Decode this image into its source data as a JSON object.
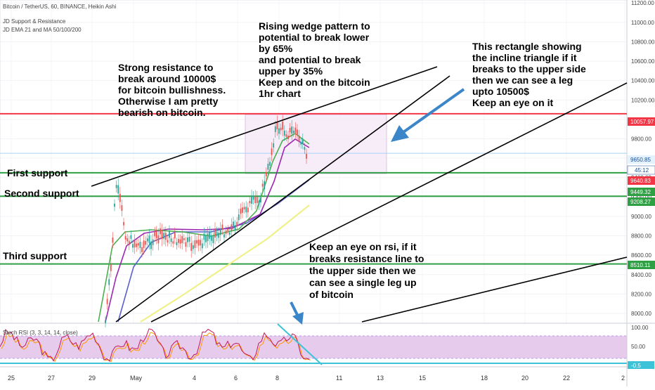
{
  "header": {
    "symbol": "Bitcoin / TetherUS, 60, BINANCE, Heikin Ashi",
    "indicator_1": "JD Support & Resistance",
    "indicator_2": "JD EMA 21 and MA 50/100/200"
  },
  "annotations": {
    "resistance": [
      "Strong resistance to",
      "break  around 10000$",
      "for bitcoin bullishness.",
      "Otherwise I am pretty",
      "bearish on bitcoin."
    ],
    "wedge": [
      "Rising wedge pattern to",
      "potential to break lower",
      "by 65%",
      "and potential to break",
      "upper by 35%",
      "Keep and on the bitcoin",
      "1hr chart"
    ],
    "rectangle": [
      "This rectangle showing",
      "the incline triangle if it",
      "breaks to the upper side",
      "then we can see a leg",
      "upto 10500$",
      "Keep an eye on it"
    ],
    "rsi": [
      "Keep an eye on rsi, if it",
      "breaks resistance line to",
      "the upper side then we",
      "can see a single leg up",
      "of bitcoin"
    ],
    "first_support": "First support",
    "second_support": "Second support",
    "third_support": "Third support"
  },
  "colors": {
    "resistance_line": "#f23645",
    "support_line": "#2ea043",
    "ema21": "#4caf50",
    "ma50": "#9c27b0",
    "ma100": "#5b5fcf",
    "ma200": "#f0f08a",
    "candle_up": "#26a69a",
    "candle_down": "#ef5350",
    "rect_fill": "#f3e5f5",
    "arrow": "#3a86c8",
    "rsi_band": "#e1bee7",
    "rsi_k": "#c2185b",
    "rsi_d": "#ff9800"
  },
  "chart_data": {
    "type": "candlestick",
    "price_axis": {
      "ylim": [
        7900,
        11300
      ],
      "ticks": [
        8000,
        8200,
        8400,
        8600,
        8800,
        9000,
        9200,
        9400,
        9600,
        9800,
        10000,
        10200,
        10400,
        10600,
        10800,
        11000,
        11200
      ],
      "tick_labels": [
        "8000.00",
        "8200.00",
        "8400.00",
        "8600.00",
        "8800.00",
        "9000.00",
        "9200.00",
        "9400.00",
        "9600.00",
        "9800.00",
        "10000.00",
        "10200.00",
        "10400.00",
        "10600.00",
        "10800.00",
        "11000.00",
        "11200.00"
      ]
    },
    "time_axis": {
      "labels": [
        "25",
        "27",
        "29",
        "May",
        "4",
        "6",
        "8",
        "11",
        "13",
        "15",
        "18",
        "20",
        "22",
        "2"
      ]
    },
    "price_badges": [
      {
        "value": 10057.97,
        "label": "10057.97",
        "color": "#f23645"
      },
      {
        "value": 9650.85,
        "label": "9650.85",
        "color": "#e3f2fd"
      },
      {
        "value": 9640.83,
        "label": "9640.83",
        "color": "#f23645"
      },
      {
        "value": 9449.32,
        "label": "9449.32",
        "color": "#2ea043"
      },
      {
        "value": 9208.27,
        "label": "9208.27",
        "color": "#2ea043"
      },
      {
        "value": 8510.11,
        "label": "8510.11",
        "color": "#2ea043"
      }
    ],
    "countdown": "45:12",
    "levels": [
      {
        "name": "resistance",
        "value": 10057.97
      },
      {
        "name": "first support",
        "value": 9449.32
      },
      {
        "name": "second support",
        "value": 9208.27
      },
      {
        "name": "third support",
        "value": 8510.11
      }
    ],
    "rsi": {
      "label": "Stoch RSI (3, 3, 14, 14, close)",
      "ylim": [
        0,
        100
      ],
      "ticks": [
        "100.00",
        "50.00",
        "0.00"
      ],
      "current": "-0.5"
    }
  }
}
